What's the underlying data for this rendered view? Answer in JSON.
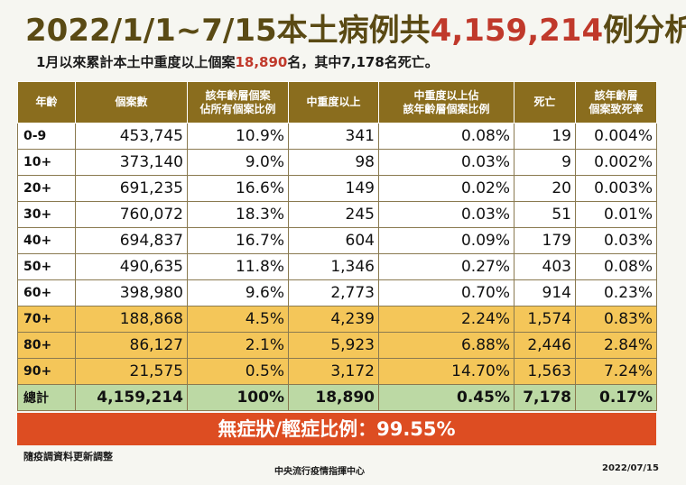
{
  "title": {
    "prefix": "2022/1/1~7/15本土病例共",
    "number": "4,159,214",
    "suffix": "例分析"
  },
  "subtitle": {
    "prefix": "1月以來累計本土中重度以上個案",
    "number": "18,890",
    "suffix": "名，其中7,178名死亡。"
  },
  "table": {
    "headers": [
      "年齡",
      "個案數",
      "該年齡層個案\n佔所有個案比例",
      "中重度以上",
      "中重度以上佔\n該年齡層個案比例",
      "死亡",
      "該年齡層\n個案致死率"
    ],
    "rows": [
      {
        "age": "0-9",
        "cases": "453,745",
        "share": "10.9%",
        "severe": "341",
        "severe_ratio": "0.08%",
        "deaths": "19",
        "cfr": "0.004%",
        "highlight": false
      },
      {
        "age": "10+",
        "cases": "373,140",
        "share": "9.0%",
        "severe": "98",
        "severe_ratio": "0.03%",
        "deaths": "9",
        "cfr": "0.002%",
        "highlight": false
      },
      {
        "age": "20+",
        "cases": "691,235",
        "share": "16.6%",
        "severe": "149",
        "severe_ratio": "0.02%",
        "deaths": "20",
        "cfr": "0.003%",
        "highlight": false
      },
      {
        "age": "30+",
        "cases": "760,072",
        "share": "18.3%",
        "severe": "245",
        "severe_ratio": "0.03%",
        "deaths": "51",
        "cfr": "0.01%",
        "highlight": false
      },
      {
        "age": "40+",
        "cases": "694,837",
        "share": "16.7%",
        "severe": "604",
        "severe_ratio": "0.09%",
        "deaths": "179",
        "cfr": "0.03%",
        "highlight": false
      },
      {
        "age": "50+",
        "cases": "490,635",
        "share": "11.8%",
        "severe": "1,346",
        "severe_ratio": "0.27%",
        "deaths": "403",
        "cfr": "0.08%",
        "highlight": false
      },
      {
        "age": "60+",
        "cases": "398,980",
        "share": "9.6%",
        "severe": "2,773",
        "severe_ratio": "0.70%",
        "deaths": "914",
        "cfr": "0.23%",
        "highlight": false
      },
      {
        "age": "70+",
        "cases": "188,868",
        "share": "4.5%",
        "severe": "4,239",
        "severe_ratio": "2.24%",
        "deaths": "1,574",
        "cfr": "0.83%",
        "highlight": true
      },
      {
        "age": "80+",
        "cases": "86,127",
        "share": "2.1%",
        "severe": "5,923",
        "severe_ratio": "6.88%",
        "deaths": "2,446",
        "cfr": "2.84%",
        "highlight": true
      },
      {
        "age": "90+",
        "cases": "21,575",
        "share": "0.5%",
        "severe": "3,172",
        "severe_ratio": "14.70%",
        "deaths": "1,563",
        "cfr": "7.24%",
        "highlight": true
      }
    ],
    "total": {
      "age": "總計",
      "cases": "4,159,214",
      "share": "100%",
      "severe": "18,890",
      "severe_ratio": "0.45%",
      "deaths": "7,178",
      "cfr": "0.17%"
    }
  },
  "banner": "無症狀/輕症比例：99.55%",
  "footer": {
    "note": "隨疫調資料更新調整",
    "org": "中央流行疫情指揮中心",
    "date": "2022/07/15"
  },
  "colors": {
    "header": "#8a6d1e",
    "highlight": "#f4c659",
    "total": "#bcd9a4",
    "banner": "#dd4d22",
    "accent": "#c0392b",
    "title": "#5a4a14"
  }
}
